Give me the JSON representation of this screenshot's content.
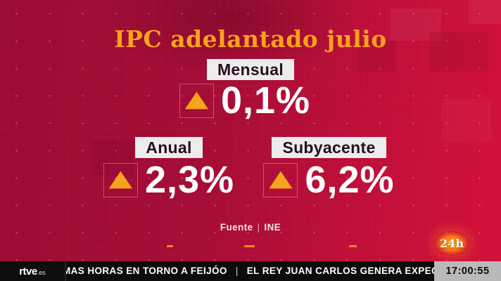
{
  "header": {
    "title": "IPC adelantado julio"
  },
  "indicators": {
    "mensual": {
      "label": "Mensual",
      "value": "0,1%",
      "direction": "up"
    },
    "anual": {
      "label": "Anual",
      "value": "2,3%",
      "direction": "up"
    },
    "subyacente": {
      "label": "Subyacente",
      "value": "6,2%",
      "direction": "up"
    }
  },
  "source": {
    "prefix": "Fuente",
    "separator": "|",
    "name": "INE"
  },
  "channel_logo": {
    "label": "24h"
  },
  "footer": {
    "network_logo": {
      "main": "rtve",
      "suffix": ".es"
    },
    "ticker": {
      "headline_1": "MAS HORAS EN TORNO A FEIJÓO",
      "separator": "|",
      "headline_2": "EL REY JUAN CARLOS GENERA EXPECTACIÓN E"
    },
    "clock": "17:00:55"
  },
  "colors": {
    "background_left": "#9C0B33",
    "background_right": "#D31139",
    "title_orange": "#F9A21C",
    "triangle_orange": "#F5A41D",
    "label_box_bg": "#EDECEC",
    "label_text": "#26101F",
    "value_white": "#FFFFFF",
    "bar_black": "#0C0C0C",
    "clock_gray": "#B9B9B9",
    "dash_orange": "#EF8C15"
  }
}
